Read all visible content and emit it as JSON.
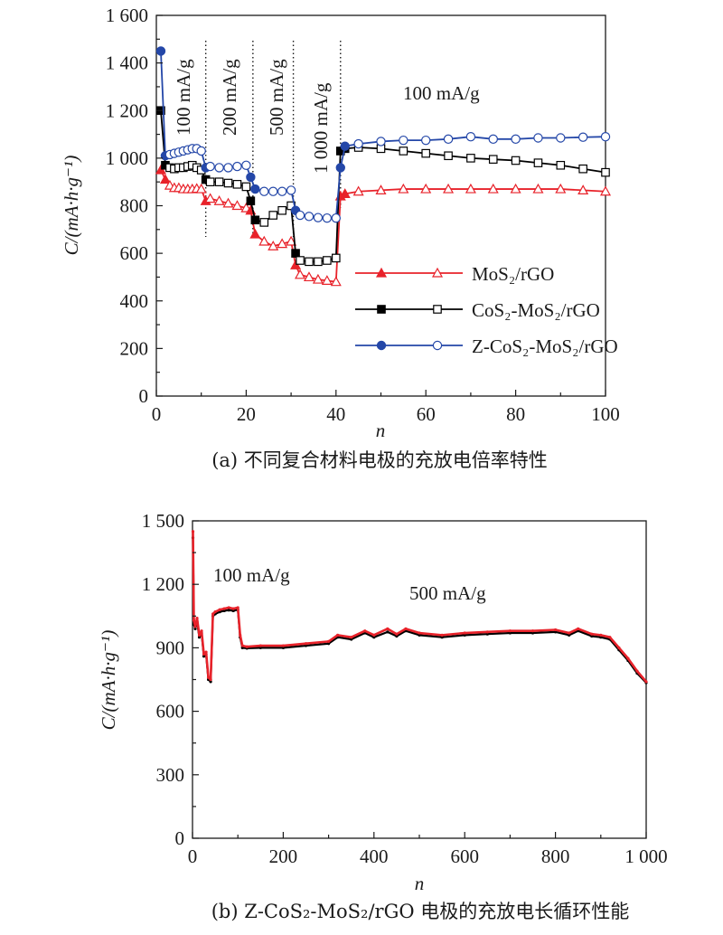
{
  "chart_data": [
    {
      "type": "line",
      "caption": "(a) 不同复合材料电极的充放电倍率特性",
      "xlabel": "n",
      "ylabel": "C/(mA·h·g⁻¹)",
      "xlim": [
        0,
        100
      ],
      "ylim": [
        0,
        1600
      ],
      "x_ticks": [
        "0",
        "20",
        "40",
        "60",
        "80",
        "100"
      ],
      "y_ticks": [
        "0",
        "200",
        "400",
        "600",
        "800",
        "1 000",
        "1 200",
        "1 400",
        "1 600"
      ],
      "rate_labels": [
        "100 mA/g",
        "200 mA/g",
        "500 mA/g",
        "1 000 mA/g"
      ],
      "final_rate_label": "100 mA/g",
      "section_boundaries": [
        11,
        21.5,
        30.5,
        41
      ],
      "legend_position": "bottom-right",
      "series": [
        {
          "name": "MoS₂/rGO",
          "color": "#e8222a",
          "marker": "triangle",
          "x": [
            1,
            2,
            3,
            4,
            5,
            6,
            7,
            8,
            9,
            10,
            11,
            12,
            14,
            16,
            18,
            20,
            21,
            22,
            24,
            26,
            28,
            30,
            31,
            32,
            34,
            36,
            38,
            40,
            41,
            42,
            45,
            50,
            55,
            60,
            65,
            70,
            75,
            80,
            85,
            90,
            95,
            100
          ],
          "y": [
            950,
            910,
            885,
            875,
            875,
            870,
            870,
            870,
            872,
            870,
            820,
            830,
            820,
            810,
            800,
            790,
            780,
            680,
            650,
            630,
            640,
            650,
            550,
            510,
            500,
            490,
            485,
            480,
            840,
            850,
            860,
            865,
            870,
            870,
            870,
            870,
            870,
            870,
            870,
            870,
            865,
            860
          ]
        },
        {
          "name": "CoS₂-MoS₂/rGO",
          "color": "#000000",
          "marker": "square",
          "x": [
            1,
            2,
            3,
            4,
            5,
            6,
            7,
            8,
            9,
            10,
            11,
            12,
            14,
            16,
            18,
            20,
            21,
            22,
            24,
            26,
            28,
            30,
            31,
            32,
            34,
            36,
            38,
            40,
            41,
            42,
            45,
            50,
            55,
            60,
            65,
            70,
            75,
            80,
            85,
            90,
            95,
            100
          ],
          "y": [
            1200,
            970,
            960,
            955,
            960,
            960,
            965,
            970,
            960,
            950,
            910,
            900,
            900,
            895,
            890,
            880,
            820,
            740,
            730,
            760,
            780,
            800,
            600,
            570,
            565,
            565,
            570,
            580,
            1030,
            1040,
            1045,
            1040,
            1030,
            1020,
            1010,
            1000,
            995,
            990,
            980,
            970,
            955,
            940
          ]
        },
        {
          "name": "Z-CoS₂-MoS₂/rGO",
          "color": "#2447a8",
          "marker": "circle",
          "x": [
            1,
            2,
            3,
            4,
            5,
            6,
            7,
            8,
            9,
            10,
            11,
            12,
            14,
            16,
            18,
            20,
            21,
            22,
            24,
            26,
            28,
            30,
            31,
            32,
            34,
            36,
            38,
            40,
            41,
            42,
            45,
            50,
            55,
            60,
            65,
            70,
            75,
            80,
            85,
            90,
            95,
            100
          ],
          "y": [
            1450,
            1010,
            1015,
            1020,
            1025,
            1030,
            1035,
            1040,
            1040,
            1030,
            960,
            965,
            960,
            960,
            965,
            970,
            920,
            870,
            860,
            860,
            860,
            865,
            780,
            760,
            755,
            750,
            748,
            748,
            960,
            1050,
            1060,
            1070,
            1075,
            1075,
            1080,
            1090,
            1080,
            1080,
            1085,
            1085,
            1088,
            1090
          ]
        }
      ]
    },
    {
      "type": "line",
      "caption": "(b) Z-CoS₂-MoS₂/rGO 电极的充放电长循环性能",
      "xlabel": "n",
      "ylabel": "C/(mA·h·g⁻¹)",
      "xlim": [
        0,
        1000
      ],
      "ylim": [
        0,
        1500
      ],
      "x_ticks": [
        "0",
        "200",
        "400",
        "600",
        "800",
        "1 000"
      ],
      "y_ticks": [
        "0",
        "300",
        "600",
        "900",
        "1 200",
        "1 500"
      ],
      "annotations": [
        "100 mA/g",
        "500 mA/g"
      ],
      "series": [
        {
          "name": "",
          "color": "#e8222a",
          "x": [
            1,
            3,
            6,
            10,
            15,
            20,
            25,
            30,
            35,
            40,
            45,
            50,
            60,
            70,
            80,
            90,
            100,
            105,
            110,
            120,
            150,
            200,
            250,
            300,
            320,
            350,
            380,
            400,
            430,
            450,
            470,
            500,
            550,
            600,
            650,
            700,
            750,
            800,
            830,
            850,
            880,
            900,
            920,
            940,
            960,
            980,
            1000
          ],
          "y": [
            1450,
            1030,
            1000,
            1040,
            960,
            980,
            870,
            880,
            760,
            750,
            1060,
            1070,
            1080,
            1085,
            1090,
            1085,
            1090,
            960,
            910,
            905,
            910,
            910,
            920,
            930,
            960,
            950,
            980,
            960,
            990,
            965,
            990,
            970,
            960,
            970,
            975,
            980,
            980,
            985,
            970,
            990,
            965,
            960,
            950,
            900,
            850,
            790,
            740
          ]
        },
        {
          "name": "",
          "color": "#000000",
          "x": [
            1,
            3,
            6,
            10,
            15,
            20,
            25,
            30,
            35,
            40,
            45,
            50,
            60,
            70,
            80,
            90,
            100,
            105,
            110,
            120,
            150,
            200,
            250,
            300,
            320,
            350,
            380,
            400,
            430,
            450,
            470,
            500,
            550,
            600,
            650,
            700,
            750,
            800,
            830,
            850,
            880,
            900,
            920,
            940,
            960,
            980,
            1000
          ],
          "y": [
            1420,
            1010,
            990,
            1025,
            950,
            970,
            860,
            870,
            750,
            740,
            1050,
            1060,
            1070,
            1075,
            1078,
            1075,
            1080,
            950,
            900,
            898,
            900,
            900,
            910,
            920,
            950,
            940,
            970,
            950,
            975,
            955,
            980,
            960,
            950,
            960,
            965,
            970,
            970,
            975,
            960,
            980,
            955,
            950,
            940,
            890,
            840,
            780,
            735
          ]
        }
      ]
    }
  ]
}
